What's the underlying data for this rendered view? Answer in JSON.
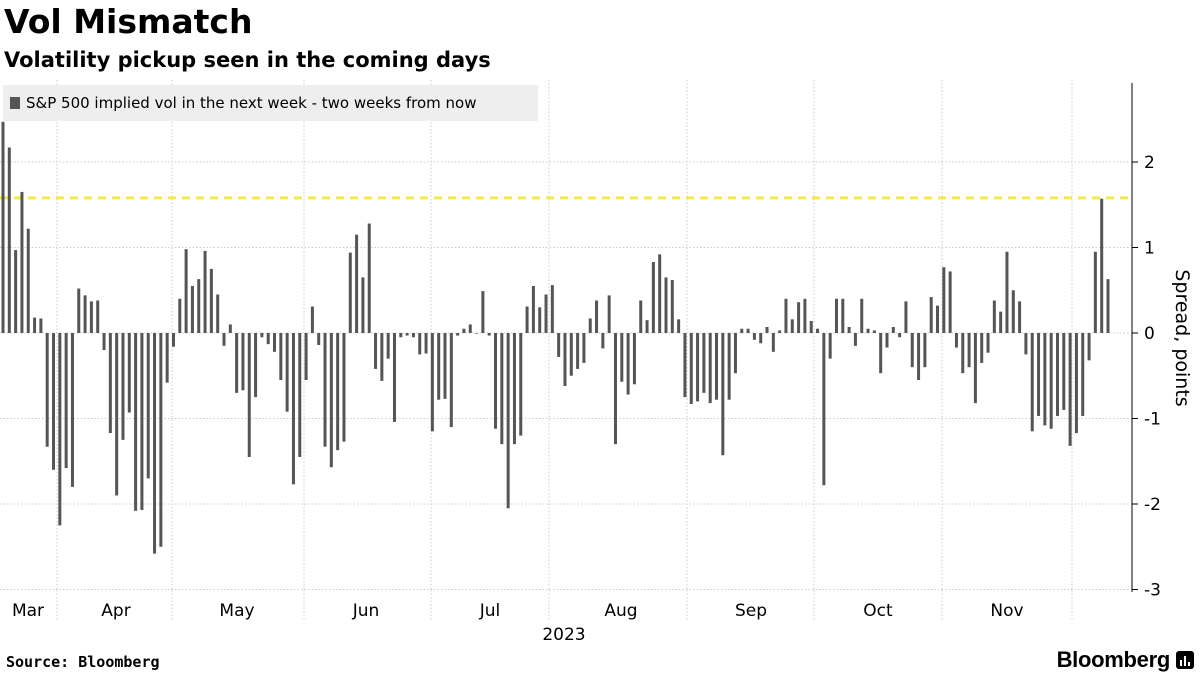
{
  "header": {
    "title": "Vol Mismatch",
    "subtitle": "Volatility pickup seen in the coming days"
  },
  "footer": {
    "source": "Source: Bloomberg",
    "brand": "Bloomberg"
  },
  "chart_data": {
    "type": "bar",
    "legend": {
      "label": "S&P 500 implied vol in the next week - two weeks from now",
      "position": "top-left"
    },
    "ylabel": "Spread, points",
    "xlabel": "2023",
    "ylim": [
      -3,
      3
    ],
    "yticks": [
      2,
      1,
      0,
      -1,
      -2,
      -3
    ],
    "grid": true,
    "x_ticks": [
      "Mar",
      "Apr",
      "May",
      "Jun",
      "Jul",
      "Aug",
      "Sep",
      "Oct",
      "Nov"
    ],
    "reference_line": {
      "value": 1.58,
      "color": "#f5e94a",
      "style": "dashed"
    },
    "colors": {
      "bar": "#555555",
      "grid": "#cccccc",
      "legend_bg": "#eeeeee"
    },
    "series": [
      {
        "values": [
          2.47,
          2.17,
          0.97,
          1.65,
          1.22,
          0.18,
          0.17,
          -1.33,
          -1.6,
          -2.25,
          -1.58,
          -1.8,
          0.52,
          0.44,
          0.37,
          0.38,
          -0.2,
          -1.17,
          -1.9,
          -1.25,
          -0.93,
          -2.08,
          -2.07,
          -1.7,
          -2.58,
          -2.5,
          -0.58,
          -0.16,
          0.4,
          0.98,
          0.55,
          0.63,
          0.96,
          0.75,
          0.45,
          -0.15,
          0.1,
          -0.7,
          -0.67,
          -1.45,
          -0.75,
          -0.05,
          -0.13,
          -0.22,
          -0.55,
          -0.92,
          -1.77,
          -1.45,
          -0.55,
          0.31,
          -0.14,
          -1.33,
          -1.57,
          -1.37,
          -1.27,
          0.94,
          1.15,
          0.65,
          1.28,
          -0.42,
          -0.56,
          -0.3,
          -1.04,
          -0.05,
          -0.03,
          -0.05,
          -0.25,
          -0.24,
          -1.15,
          -0.78,
          -0.77,
          -1.1,
          -0.03,
          0.05,
          0.1,
          0.0,
          0.49,
          -0.03,
          -1.12,
          -1.3,
          -2.05,
          -1.3,
          -1.2,
          0.31,
          0.55,
          0.3,
          0.45,
          0.56,
          -0.28,
          -0.62,
          -0.5,
          -0.42,
          -0.35,
          0.17,
          0.38,
          -0.18,
          0.44,
          -1.3,
          -0.57,
          -0.72,
          -0.6,
          0.38,
          0.15,
          0.83,
          0.92,
          0.65,
          0.62,
          0.16,
          -0.75,
          -0.83,
          -0.8,
          -0.7,
          -0.82,
          -0.78,
          -1.43,
          -0.78,
          -0.47,
          0.05,
          0.05,
          -0.08,
          -0.12,
          0.07,
          -0.22,
          0.03,
          0.4,
          0.16,
          0.36,
          0.4,
          0.14,
          0.05,
          -1.78,
          -0.3,
          0.4,
          0.4,
          0.07,
          -0.15,
          0.4,
          0.05,
          0.03,
          -0.47,
          -0.17,
          0.07,
          -0.05,
          0.37,
          -0.4,
          -0.55,
          -0.4,
          0.42,
          0.32,
          0.77,
          0.72,
          -0.17,
          -0.47,
          -0.4,
          -0.82,
          -0.35,
          -0.23,
          0.38,
          0.25,
          0.95,
          0.5,
          0.37,
          -0.25,
          -1.15,
          -0.97,
          -1.08,
          -1.12,
          -0.97,
          -0.9,
          -1.32,
          -1.17,
          -0.97,
          -0.32,
          0.95,
          1.57,
          0.63
        ]
      }
    ]
  }
}
